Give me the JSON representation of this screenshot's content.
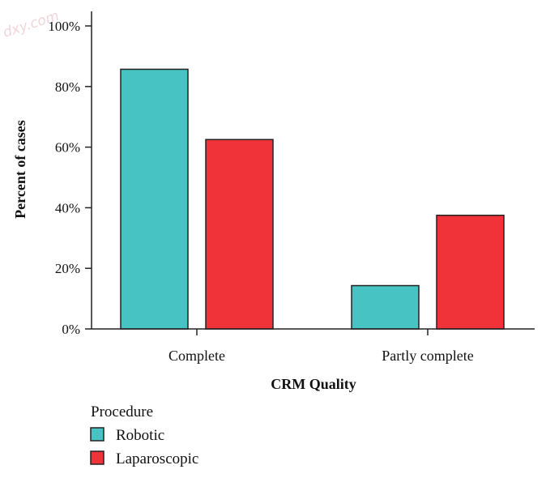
{
  "chart_data": {
    "type": "bar",
    "categories": [
      "Complete",
      "Partly complete"
    ],
    "series": [
      {
        "name": "Robotic",
        "values": [
          85.7,
          14.3
        ],
        "color": "#47c3c3"
      },
      {
        "name": "Laparoscopic",
        "values": [
          62.5,
          37.5
        ],
        "color": "#ef3338"
      }
    ],
    "xlabel": "CRM Quality",
    "ylabel": "Percent of cases",
    "ylim": [
      0,
      100
    ],
    "yticks": [
      0,
      20,
      40,
      60,
      80,
      100
    ],
    "ytick_labels": [
      "0%",
      "20%",
      "40%",
      "60%",
      "80%",
      "100%"
    ],
    "grid": false,
    "legend": {
      "title": "Procedure",
      "placement": "bottom-left"
    },
    "watermark": "dxy.com"
  }
}
